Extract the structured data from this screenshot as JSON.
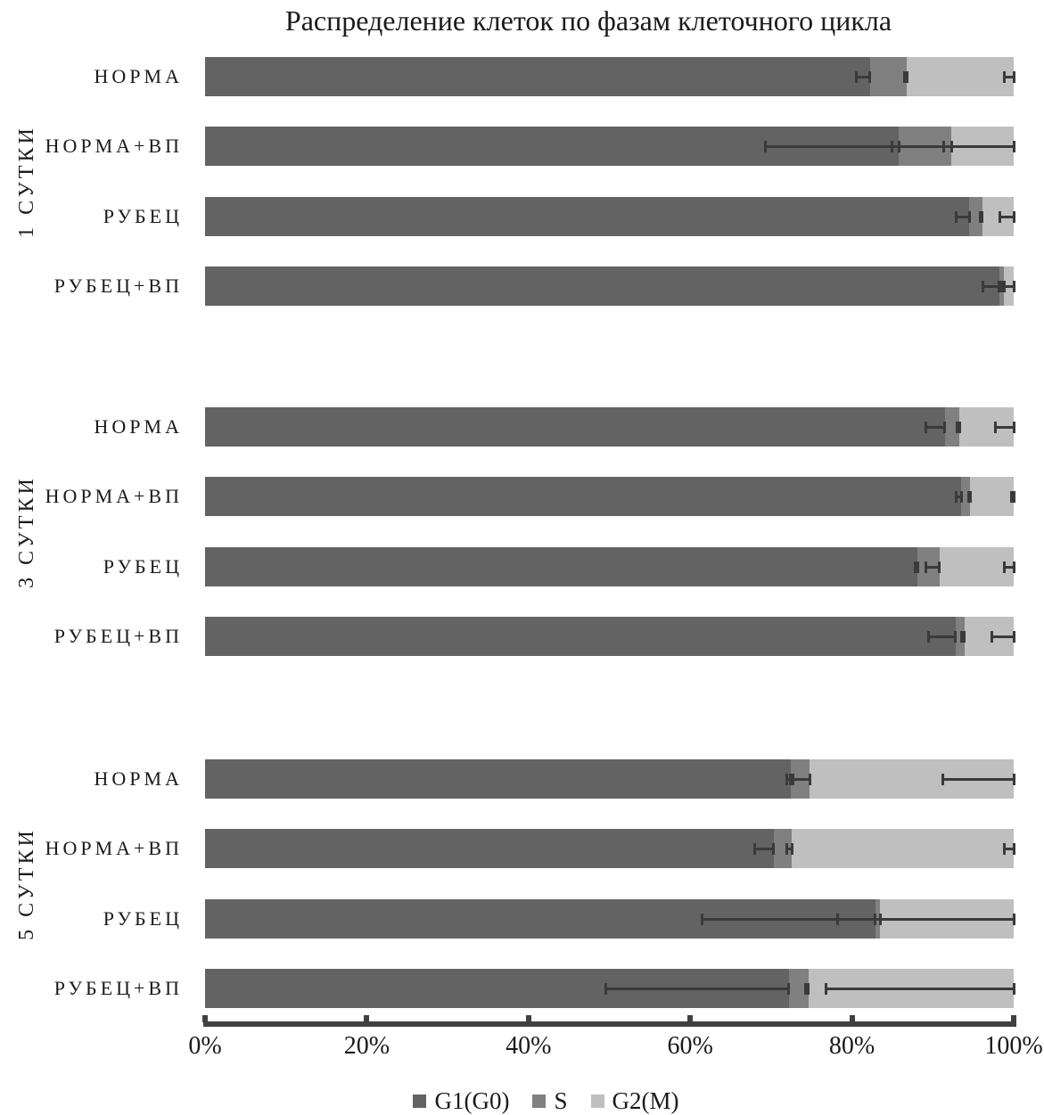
{
  "chart_data": {
    "type": "bar",
    "orientation": "horizontal",
    "stacked": true,
    "title": "Распределение клеток по фазам клеточного цикла",
    "value_unit": "%",
    "xlim": [
      0,
      100
    ],
    "x_ticks": [
      "0%",
      "20%",
      "40%",
      "60%",
      "80%",
      "100%"
    ],
    "legend_position": "bottom",
    "error_bars": "minus-direction, drawn at cumulative segment ends",
    "series": [
      {
        "name": "G1(G0)",
        "color": "#636363"
      },
      {
        "name": "S",
        "color": "#808080"
      },
      {
        "name": "G2(M)",
        "color": "#bfbfbf"
      }
    ],
    "groups": [
      {
        "label": "1 СУТКИ",
        "rows": [
          {
            "label": "НОРМА",
            "values": [
              82.2,
              4.6,
              13.2
            ],
            "errors": [
              1.7,
              0.3,
              1.2
            ]
          },
          {
            "label": "НОРМА+ВП",
            "values": [
              85.8,
              6.5,
              7.7
            ],
            "errors": [
              16.5,
              1.0,
              15.0
            ]
          },
          {
            "label": "РУБЕЦ",
            "values": [
              94.5,
              1.6,
              3.9
            ],
            "errors": [
              1.6,
              0.2,
              1.7
            ]
          },
          {
            "label": "РУБЕЦ+ВП",
            "values": [
              98.2,
              0.6,
              1.2
            ],
            "errors": [
              2.0,
              0.3,
              1.6
            ]
          }
        ]
      },
      {
        "label": "3 СУТКИ",
        "rows": [
          {
            "label": "НОРМА",
            "values": [
              91.5,
              1.8,
              6.7
            ],
            "errors": [
              2.4,
              0.3,
              2.3
            ]
          },
          {
            "label": "НОРМА+ВП",
            "values": [
              93.5,
              1.1,
              5.4
            ],
            "errors": [
              0.6,
              0.2,
              0.3
            ]
          },
          {
            "label": "РУБЕЦ",
            "values": [
              88.1,
              2.7,
              9.2
            ],
            "errors": [
              0.3,
              1.7,
              1.2
            ]
          },
          {
            "label": "РУБЕЦ+ВП",
            "values": [
              92.8,
              1.1,
              6.1
            ],
            "errors": [
              3.3,
              0.3,
              2.7
            ]
          }
        ]
      },
      {
        "label": "5 СУТКИ",
        "rows": [
          {
            "label": "НОРМА",
            "values": [
              72.4,
              2.4,
              25.2
            ],
            "errors": [
              0.5,
              2.1,
              8.8
            ]
          },
          {
            "label": "НОРМА+ВП",
            "values": [
              70.3,
              2.3,
              27.4
            ],
            "errors": [
              2.3,
              0.7,
              1.2
            ]
          },
          {
            "label": "РУБЕЦ",
            "values": [
              82.9,
              0.6,
              16.5
            ],
            "errors": [
              21.4,
              5.3,
              17.1
            ]
          },
          {
            "label": "РУБЕЦ+ВП",
            "values": [
              72.2,
              2.4,
              25.4
            ],
            "errors": [
              22.6,
              0.3,
              23.2
            ]
          }
        ]
      }
    ]
  }
}
